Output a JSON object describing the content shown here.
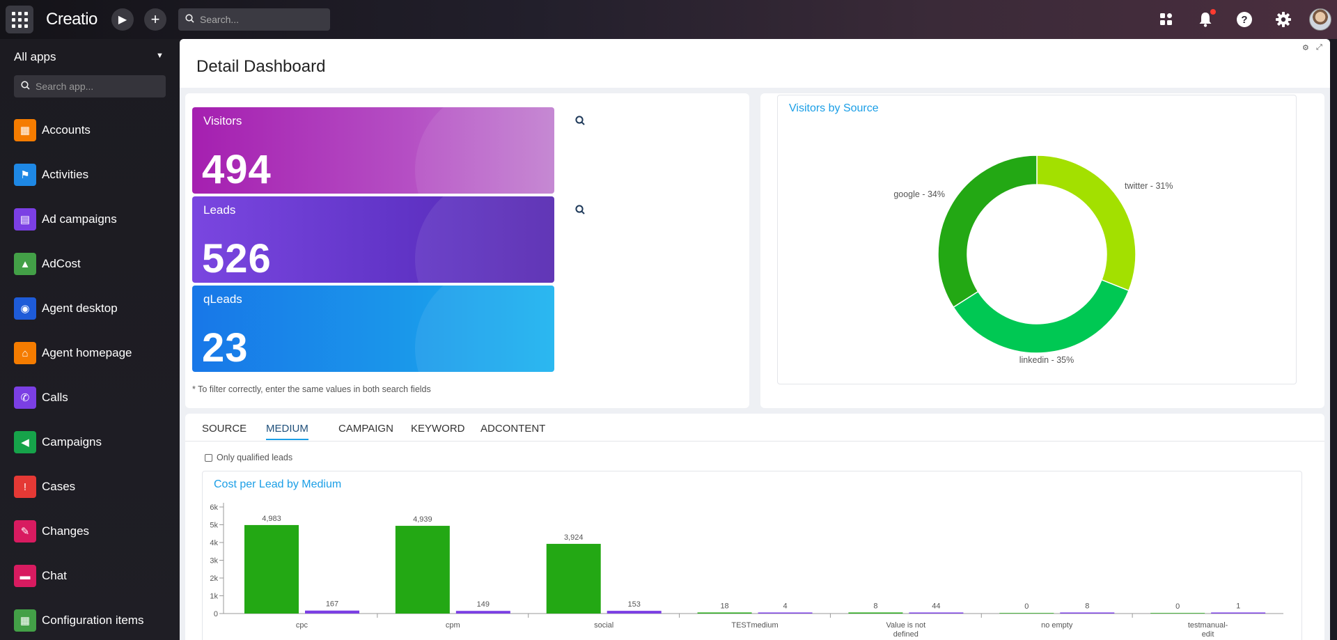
{
  "topbar": {
    "logo": "Creatio",
    "search_placeholder": "Search..."
  },
  "sidebar": {
    "all_apps": "All apps",
    "search_placeholder": "Search app...",
    "items": [
      {
        "label": "Accounts",
        "icon": "building-icon",
        "color": "#f57c00"
      },
      {
        "label": "Activities",
        "icon": "flag-icon",
        "color": "#1e88e5"
      },
      {
        "label": "Ad campaigns",
        "icon": "ad-icon",
        "color": "#7b3fe4"
      },
      {
        "label": "AdCost",
        "icon": "chart-icon",
        "color": "#43a047"
      },
      {
        "label": "Agent desktop",
        "icon": "agent-icon",
        "color": "#1e5bd8"
      },
      {
        "label": "Agent homepage",
        "icon": "home-icon",
        "color": "#f57c00"
      },
      {
        "label": "Calls",
        "icon": "phone-icon",
        "color": "#7b3fe4"
      },
      {
        "label": "Campaigns",
        "icon": "megaphone-icon",
        "color": "#16a34a"
      },
      {
        "label": "Cases",
        "icon": "alert-icon",
        "color": "#e53935"
      },
      {
        "label": "Changes",
        "icon": "changes-icon",
        "color": "#d81b60"
      },
      {
        "label": "Chat",
        "icon": "chat-icon",
        "color": "#d81b60"
      },
      {
        "label": "Configuration items",
        "icon": "config-icon",
        "color": "#43a047"
      }
    ]
  },
  "page": {
    "title": "Detail Dashboard"
  },
  "tiles": [
    {
      "label": "Visitors",
      "value": "494"
    },
    {
      "label": "Leads",
      "value": "526"
    },
    {
      "label": "qLeads",
      "value": "23"
    }
  ],
  "filter_note": "* To filter correctly, enter the same values in both search fields",
  "donut": {
    "title": "Visitors by Source",
    "colors": [
      "#a3e000",
      "#00c853",
      "#23a814"
    ],
    "slices": [
      {
        "label": "twitter - 31%",
        "value": 31
      },
      {
        "label": "linkedin - 35%",
        "value": 35
      },
      {
        "label": "google - 34%",
        "value": 34
      }
    ]
  },
  "tabs": [
    "SOURCE",
    "MEDIUM",
    "CAMPAIGN",
    "KEYWORD",
    "ADCONTENT"
  ],
  "active_tab": "MEDIUM",
  "only_qualified_label": "Only qualified leads",
  "chart_data": {
    "type": "bar",
    "title": "Cost per Lead by Medium",
    "categories": [
      "cpc",
      "cpm",
      "social",
      "TESTmedium",
      "Value is not defined",
      "no empty",
      "testmanual-edit"
    ],
    "category_lines": [
      [
        "cpc"
      ],
      [
        "cpm"
      ],
      [
        "social"
      ],
      [
        "TESTmedium"
      ],
      [
        "Value is not",
        "defined"
      ],
      [
        "no empty"
      ],
      [
        "testmanual-",
        "edit"
      ]
    ],
    "series": [
      {
        "values": [
          4983,
          4939,
          3924,
          18,
          8,
          0,
          0
        ],
        "labels": [
          "4,983",
          "4,939",
          "3,924",
          "18",
          "8",
          "0",
          "0"
        ],
        "color": "#23a814"
      },
      {
        "values": [
          167,
          149,
          153,
          4,
          44,
          8,
          1
        ],
        "labels": [
          "167",
          "149",
          "153",
          "4",
          "44",
          "8",
          "1"
        ],
        "color": "#7b3fe4"
      }
    ],
    "y_ticks": [
      "0",
      "1k",
      "2k",
      "3k",
      "4k",
      "5k",
      "6k"
    ],
    "ylim": [
      0,
      6000
    ]
  }
}
